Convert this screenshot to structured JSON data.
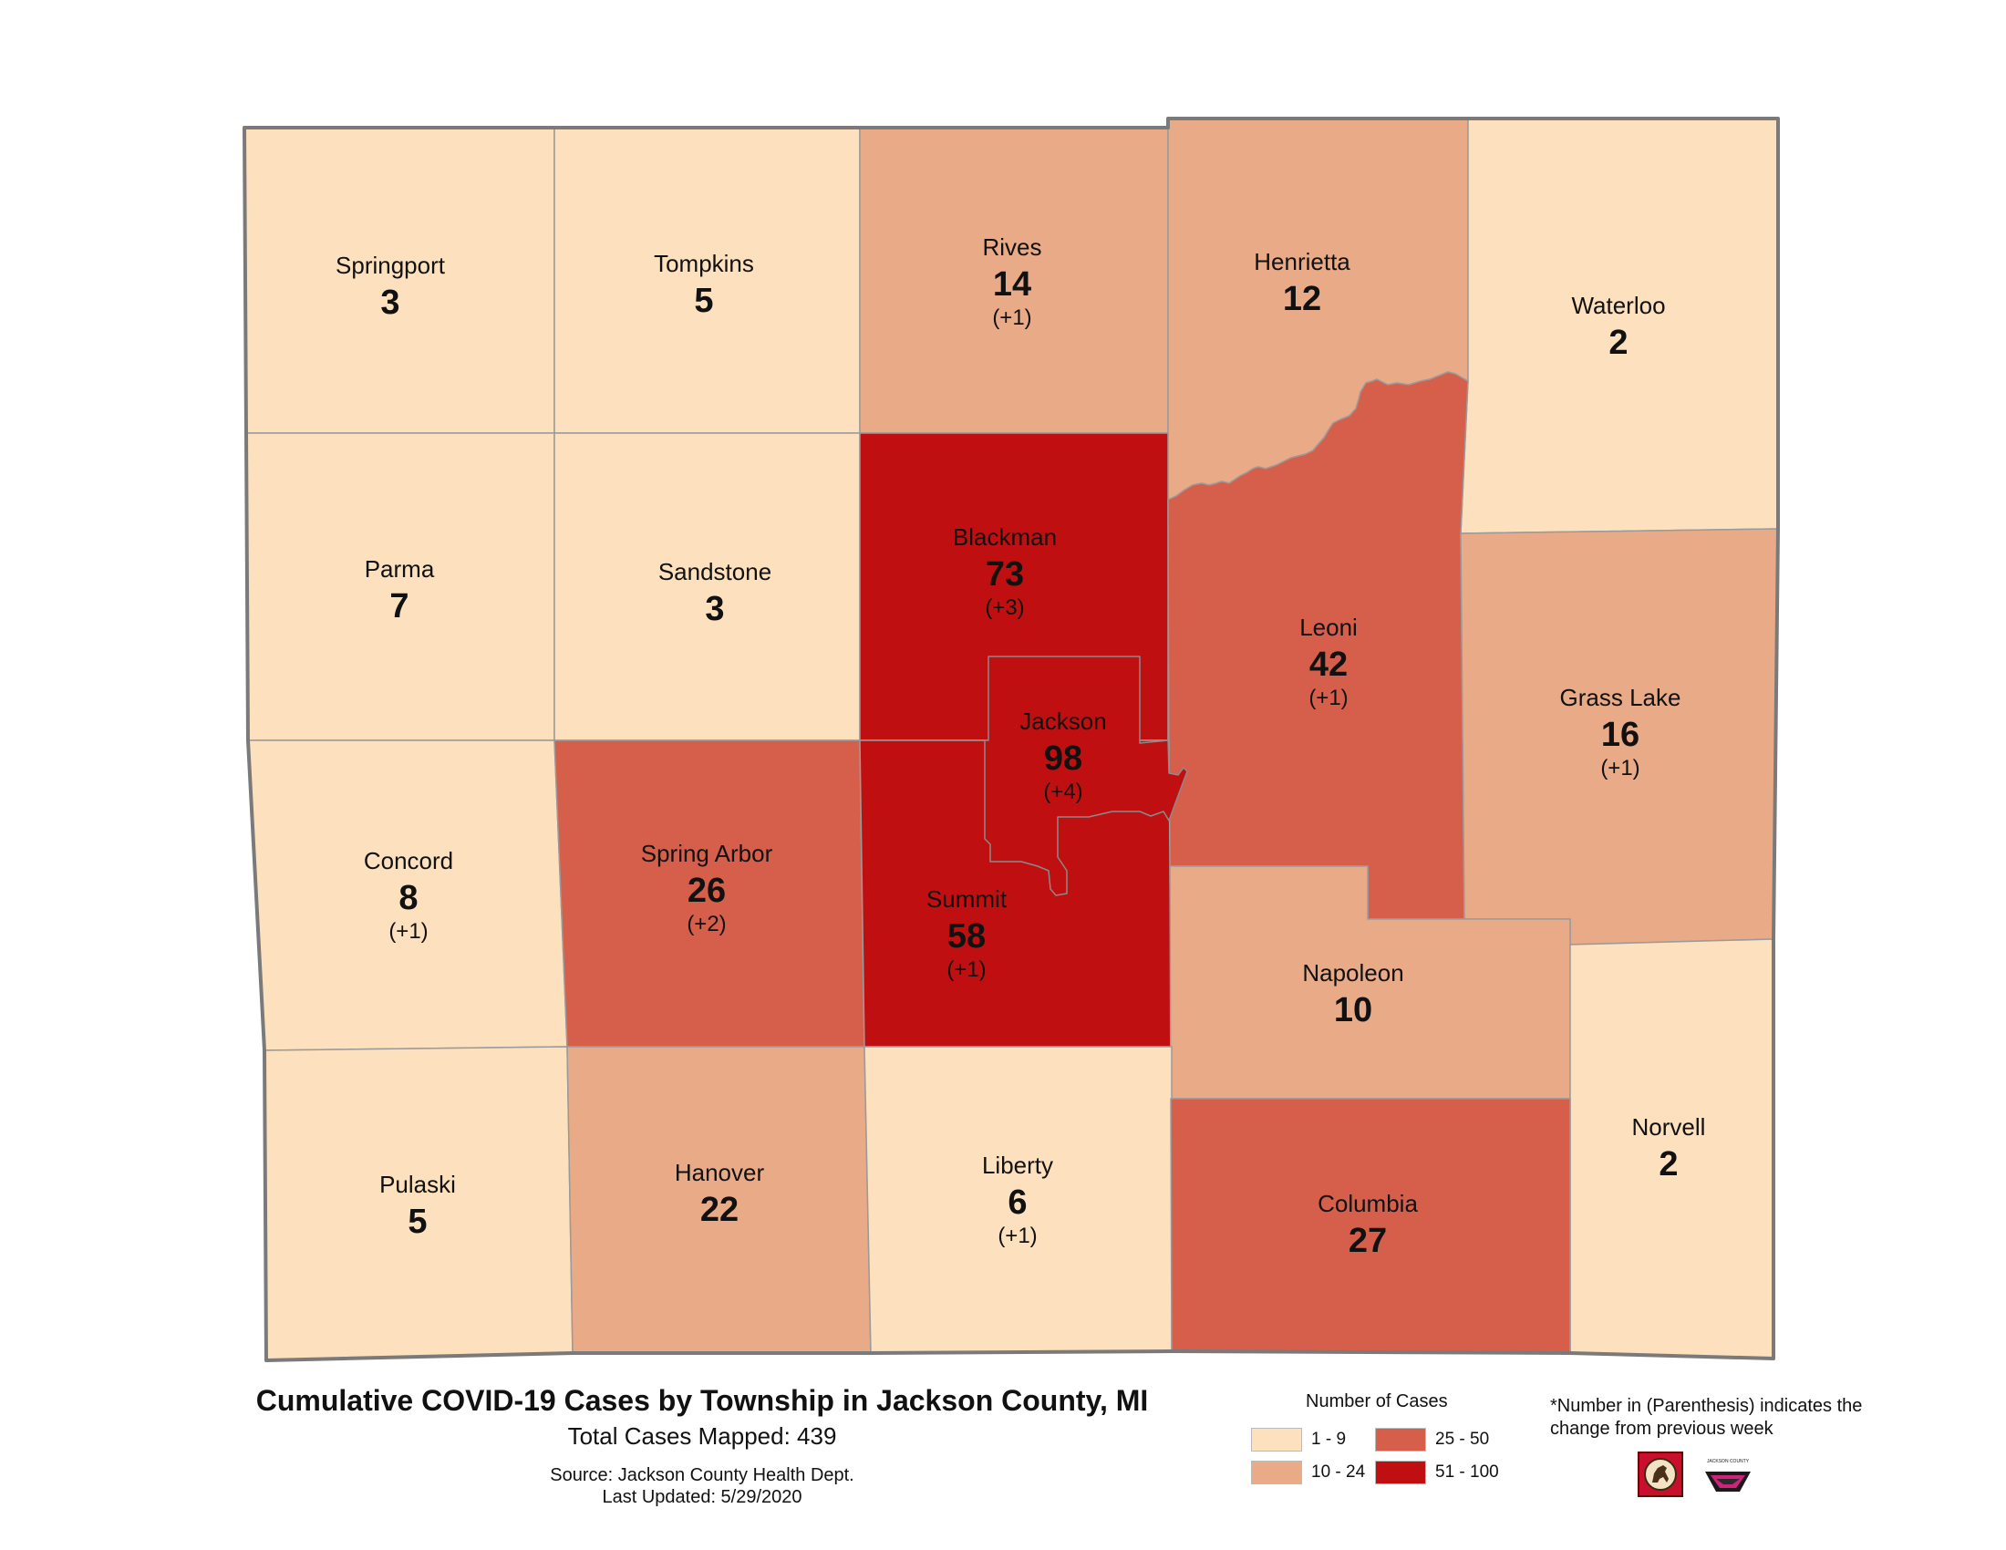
{
  "map": {
    "townships": [
      {
        "key": "springport",
        "name": "Springport",
        "count": "3",
        "change": ""
      },
      {
        "key": "tompkins",
        "name": "Tompkins",
        "count": "5",
        "change": ""
      },
      {
        "key": "rives",
        "name": "Rives",
        "count": "14",
        "change": "(+1)"
      },
      {
        "key": "henrietta",
        "name": "Henrietta",
        "count": "12",
        "change": ""
      },
      {
        "key": "waterloo",
        "name": "Waterloo",
        "count": "2",
        "change": ""
      },
      {
        "key": "parma",
        "name": "Parma",
        "count": "7",
        "change": ""
      },
      {
        "key": "sandstone",
        "name": "Sandstone",
        "count": "3",
        "change": ""
      },
      {
        "key": "blackman",
        "name": "Blackman",
        "count": "73",
        "change": "(+3)"
      },
      {
        "key": "leoni",
        "name": "Leoni",
        "count": "42",
        "change": "(+1)"
      },
      {
        "key": "grass_lake",
        "name": "Grass Lake",
        "count": "16",
        "change": "(+1)"
      },
      {
        "key": "jackson",
        "name": "Jackson",
        "count": "98",
        "change": "(+4)"
      },
      {
        "key": "concord",
        "name": "Concord",
        "count": "8",
        "change": "(+1)"
      },
      {
        "key": "spring_arbor",
        "name": "Spring Arbor",
        "count": "26",
        "change": "(+2)"
      },
      {
        "key": "summit",
        "name": "Summit",
        "count": "58",
        "change": "(+1)"
      },
      {
        "key": "napoleon",
        "name": "Napoleon",
        "count": "10",
        "change": ""
      },
      {
        "key": "norvell",
        "name": "Norvell",
        "count": "2",
        "change": ""
      },
      {
        "key": "pulaski",
        "name": "Pulaski",
        "count": "5",
        "change": ""
      },
      {
        "key": "hanover",
        "name": "Hanover",
        "count": "22",
        "change": ""
      },
      {
        "key": "liberty",
        "name": "Liberty",
        "count": "6",
        "change": "(+1)"
      },
      {
        "key": "columbia",
        "name": "Columbia",
        "count": "27",
        "change": ""
      }
    ]
  },
  "footer": {
    "title": "Cumulative COVID-19 Cases by Township in Jackson County, MI",
    "subtitle": "Total Cases Mapped: 439",
    "source": "Source: Jackson County Health Dept.",
    "updated": "Last Updated: 5/29/2020"
  },
  "legend": {
    "title": "Number of Cases",
    "classes": [
      {
        "label": "1 - 9",
        "color": "#fde0bd"
      },
      {
        "label": "10 - 24",
        "color": "#e9aa87"
      },
      {
        "label": "25 - 50",
        "color": "#d65f4b"
      },
      {
        "label": "51 - 100",
        "color": "#c00f10"
      }
    ]
  },
  "note": "*Number in (Parenthesis) indicates the change from previous week",
  "logos": [
    {
      "icon": "horse-seal-icon"
    },
    {
      "icon": "jackson-county-logo-icon",
      "text": "JACKSON COUNTY"
    }
  ]
}
